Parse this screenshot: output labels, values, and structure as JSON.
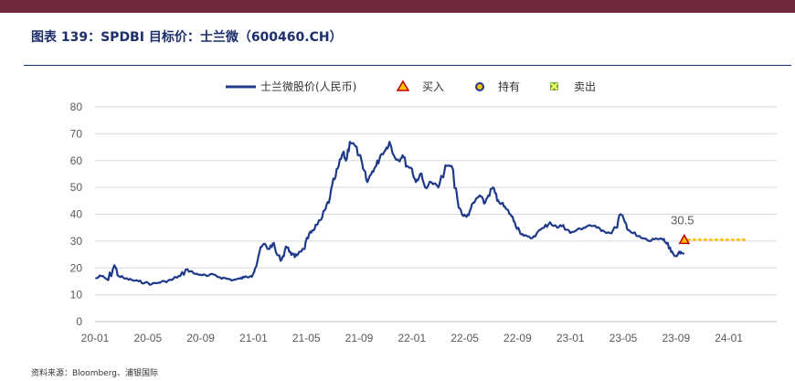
{
  "title": "图表 139：SPDBI 目标价：士兰微（600460.CH）",
  "source": "资料来源：Bloomberg、浦银国际",
  "chart_data": {
    "type": "line",
    "ylim": [
      0,
      80
    ],
    "yticks": [
      0,
      10,
      20,
      30,
      40,
      50,
      60,
      70,
      80
    ],
    "xticks": [
      "20-01",
      "20-05",
      "20-09",
      "21-01",
      "21-05",
      "21-09",
      "22-01",
      "22-05",
      "22-09",
      "23-01",
      "23-05",
      "23-09",
      "24-01"
    ],
    "grid": true,
    "legend_position": "top",
    "legend": [
      "士兰微股价(人民币)",
      "买入",
      "持有",
      "卖出"
    ],
    "colors": {
      "price": "#1f3a8a",
      "buy": "#c00000",
      "buy_fill": "#ffc000",
      "hold": "#1f3a8a",
      "sell": "#70ad47",
      "target_line": "#ffc000"
    },
    "series": [
      {
        "name": "士兰微股价(人民币)",
        "x": [
          "2020-01-02",
          "2020-01-15",
          "2020-02-01",
          "2020-02-15",
          "2020-02-25",
          "2020-03-10",
          "2020-03-25",
          "2020-04-10",
          "2020-04-25",
          "2020-05-10",
          "2020-05-25",
          "2020-06-10",
          "2020-06-25",
          "2020-07-05",
          "2020-07-15",
          "2020-08-01",
          "2020-08-15",
          "2020-09-01",
          "2020-09-15",
          "2020-10-01",
          "2020-10-15",
          "2020-11-01",
          "2020-11-15",
          "2020-12-01",
          "2020-12-10",
          "2020-12-25",
          "2021-01-05",
          "2021-01-15",
          "2021-01-25",
          "2021-02-05",
          "2021-02-15",
          "2021-02-25",
          "2021-03-05",
          "2021-03-15",
          "2021-03-25",
          "2021-04-05",
          "2021-04-15",
          "2021-04-25",
          "2021-05-05",
          "2021-05-15",
          "2021-05-25",
          "2021-06-05",
          "2021-06-15",
          "2021-06-25",
          "2021-07-05",
          "2021-07-15",
          "2021-07-25",
          "2021-08-01",
          "2021-08-10",
          "2021-08-20",
          "2021-09-01",
          "2021-09-10",
          "2021-09-20",
          "2021-10-01",
          "2021-10-10",
          "2021-10-20",
          "2021-11-01",
          "2021-11-10",
          "2021-11-20",
          "2021-12-01",
          "2021-12-10",
          "2021-12-20",
          "2022-01-01",
          "2022-01-10",
          "2022-01-20",
          "2022-02-01",
          "2022-02-15",
          "2022-03-01",
          "2022-03-10",
          "2022-03-20",
          "2022-04-01",
          "2022-04-15",
          "2022-04-25",
          "2022-05-05",
          "2022-05-15",
          "2022-05-25",
          "2022-06-05",
          "2022-06-15",
          "2022-06-25",
          "2022-07-05",
          "2022-07-15",
          "2022-07-25",
          "2022-08-05",
          "2022-08-15",
          "2022-08-25",
          "2022-09-05",
          "2022-09-15",
          "2022-10-01",
          "2022-10-15",
          "2022-11-01",
          "2022-11-15",
          "2022-12-01",
          "2022-12-15",
          "2023-01-01",
          "2023-01-15",
          "2023-02-01",
          "2023-02-15",
          "2023-03-01",
          "2023-03-15",
          "2023-04-01",
          "2023-04-15",
          "2023-04-25",
          "2023-05-05",
          "2023-05-15",
          "2023-06-01",
          "2023-06-15",
          "2023-07-01",
          "2023-07-15",
          "2023-08-01",
          "2023-08-10",
          "2023-08-20",
          "2023-08-28",
          "2023-09-05",
          "2023-09-12",
          "2023-09-20"
        ],
        "values": [
          16.0,
          17.0,
          15.5,
          21.0,
          17.0,
          16.0,
          15.5,
          15.0,
          14.5,
          14.0,
          14.5,
          15.0,
          15.5,
          16.5,
          17.0,
          19.5,
          18.0,
          17.5,
          17.0,
          17.5,
          16.5,
          16.0,
          15.5,
          16.0,
          16.5,
          17.0,
          20.0,
          26.0,
          29.0,
          27.0,
          29.0,
          25.0,
          23.0,
          28.0,
          26.0,
          24.0,
          26.0,
          27.0,
          31.0,
          34.0,
          36.0,
          38.0,
          42.0,
          46.0,
          53.0,
          58.0,
          63.0,
          60.0,
          67.0,
          66.0,
          62.0,
          57.0,
          52.0,
          56.0,
          58.0,
          62.0,
          64.0,
          67.0,
          62.0,
          60.0,
          62.0,
          58.0,
          57.0,
          52.0,
          55.0,
          50.0,
          52.0,
          50.0,
          54.0,
          58.0,
          58.0,
          45.0,
          40.0,
          39.0,
          42.0,
          45.0,
          47.0,
          44.0,
          47.0,
          50.0,
          45.0,
          44.0,
          42.0,
          40.0,
          37.0,
          34.0,
          32.0,
          31.0,
          33.0,
          35.0,
          37.0,
          35.0,
          36.0,
          33.0,
          34.0,
          35.0,
          36.0,
          35.0,
          34.0,
          33.0,
          35.0,
          40.0,
          37.0,
          34.0,
          32.0,
          31.0,
          30.0,
          31.0,
          30.5,
          29.0,
          26.0,
          24.5,
          25.0,
          26.0,
          25.5
        ]
      },
      {
        "name": "买入",
        "x": [
          "2023-09-20"
        ],
        "values": [
          30.5
        ],
        "label": "30.5",
        "target_extends_to": "2024-02-15"
      }
    ]
  }
}
